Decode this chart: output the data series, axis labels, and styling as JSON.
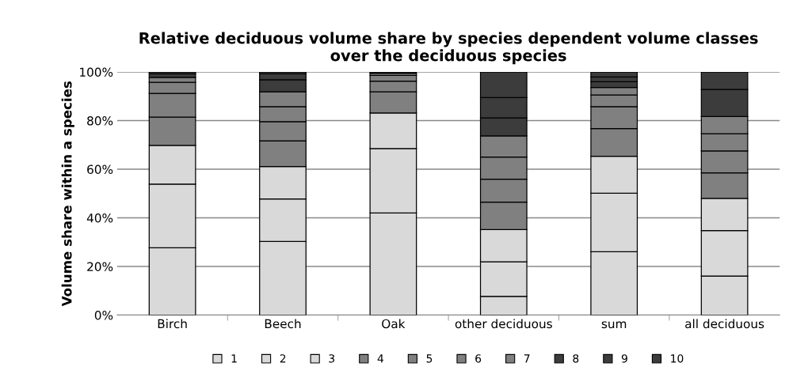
{
  "chart_data": {
    "type": "bar",
    "stacked": true,
    "title": "Relative deciduous volume share by species dependent volume classes\nover the deciduous species",
    "ylabel": "Volume share within a species",
    "categories": [
      "Birch",
      "Beech",
      "Oak",
      "other deciduous",
      "sum",
      "all deciduous"
    ],
    "series": [
      {
        "name": "1",
        "color": "#d9d9d9",
        "values": [
          27.7,
          30.3,
          42.0,
          7.7,
          26.1,
          16.1
        ]
      },
      {
        "name": "2",
        "color": "#d9d9d9",
        "values": [
          26.2,
          17.5,
          26.5,
          14.2,
          24.0,
          18.7
        ]
      },
      {
        "name": "3",
        "color": "#d9d9d9",
        "values": [
          15.9,
          13.3,
          14.6,
          13.3,
          15.2,
          13.2
        ]
      },
      {
        "name": "4",
        "color": "#808080",
        "values": [
          11.6,
          10.6,
          8.7,
          11.3,
          11.4,
          10.5
        ]
      },
      {
        "name": "5",
        "color": "#808080",
        "values": [
          9.8,
          7.9,
          4.4,
          9.4,
          9.0,
          9.0
        ]
      },
      {
        "name": "6",
        "color": "#808080",
        "values": [
          4.5,
          6.1,
          2.4,
          9.1,
          4.8,
          7.1
        ]
      },
      {
        "name": "7",
        "color": "#808080",
        "values": [
          2.1,
          6.1,
          0.9,
          8.7,
          3.1,
          7.1
        ]
      },
      {
        "name": "8",
        "color": "#3c3c3c",
        "values": [
          null,
          5.0,
          null,
          7.4,
          2.4,
          0
        ]
      },
      {
        "name": "9",
        "color": "#3c3c3c",
        "values": [
          1.4,
          2.4,
          null,
          8.4,
          1.9,
          11.1
        ]
      },
      {
        "name": "10",
        "color": "#3c3c3c",
        "values": [
          0.8,
          0.8,
          0.5,
          10.5,
          2.1,
          7.2
        ]
      }
    ],
    "ylim": [
      0,
      100
    ],
    "yticks": [
      {
        "value": 0,
        "label": "0%"
      },
      {
        "value": 20,
        "label": "20%"
      },
      {
        "value": 40,
        "label": "40%"
      },
      {
        "value": 60,
        "label": "60%"
      },
      {
        "value": 80,
        "label": "80%"
      },
      {
        "value": 100,
        "label": "100%"
      }
    ],
    "grid": "y",
    "legend": "bottom"
  }
}
